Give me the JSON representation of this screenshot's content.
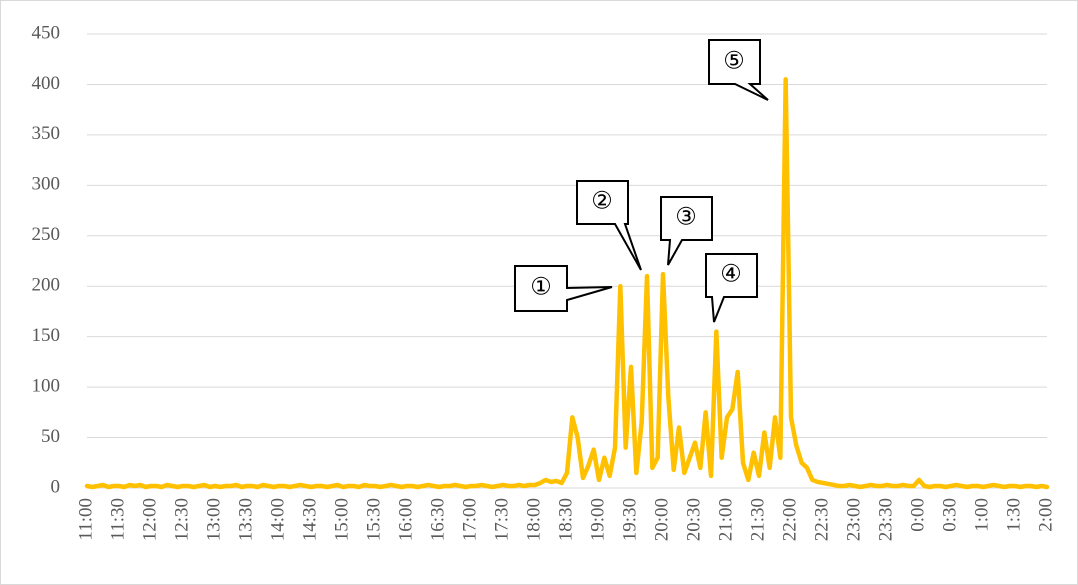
{
  "chart_data": {
    "type": "line",
    "categories": [
      "11:00",
      null,
      null,
      null,
      null,
      null,
      "11:30",
      null,
      null,
      null,
      null,
      null,
      "12:00",
      null,
      null,
      null,
      null,
      null,
      "12:30",
      null,
      null,
      null,
      null,
      null,
      "13:00",
      null,
      null,
      null,
      null,
      null,
      "13:30",
      null,
      null,
      null,
      null,
      null,
      "14:00",
      null,
      null,
      null,
      null,
      null,
      "14:30",
      null,
      null,
      null,
      null,
      null,
      "15:00",
      null,
      null,
      null,
      null,
      null,
      "15:30",
      null,
      null,
      null,
      null,
      null,
      "16:00",
      null,
      null,
      null,
      null,
      null,
      "16:30",
      null,
      null,
      null,
      null,
      null,
      "17:00",
      null,
      null,
      null,
      null,
      null,
      "17:30",
      null,
      null,
      null,
      null,
      null,
      "18:00",
      null,
      null,
      null,
      null,
      null,
      "18:30",
      null,
      null,
      null,
      null,
      null,
      "19:00",
      null,
      null,
      null,
      null,
      null,
      "19:30",
      null,
      null,
      null,
      null,
      null,
      "20:00",
      null,
      null,
      null,
      null,
      null,
      "20:30",
      null,
      null,
      null,
      null,
      null,
      "21:00",
      null,
      null,
      null,
      null,
      null,
      "21:30",
      null,
      null,
      null,
      null,
      null,
      "22:00",
      null,
      null,
      null,
      null,
      null,
      "22:30",
      null,
      null,
      null,
      null,
      null,
      "23:00",
      null,
      null,
      null,
      null,
      null,
      "23:30",
      null,
      null,
      null,
      null,
      null,
      "0:00",
      null,
      null,
      null,
      null,
      null,
      "0:30",
      null,
      null,
      null,
      null,
      null,
      "1:00",
      null,
      null,
      null,
      null,
      null,
      "1:30",
      null,
      null,
      null,
      null,
      null,
      "2:00"
    ],
    "series": [
      {
        "name": null,
        "color": "#ffc000",
        "values": [
          2,
          1,
          2,
          3,
          1,
          2,
          2,
          1,
          3,
          2,
          3,
          1,
          2,
          2,
          1,
          3,
          2,
          1,
          2,
          2,
          1,
          2,
          3,
          1,
          2,
          1,
          2,
          2,
          3,
          1,
          2,
          2,
          1,
          3,
          2,
          1,
          2,
          2,
          1,
          2,
          3,
          2,
          1,
          2,
          2,
          1,
          2,
          3,
          1,
          2,
          2,
          1,
          3,
          2,
          2,
          1,
          2,
          3,
          2,
          1,
          2,
          2,
          1,
          2,
          3,
          2,
          1,
          2,
          2,
          3,
          2,
          1,
          2,
          2,
          3,
          2,
          1,
          2,
          3,
          2,
          2,
          3,
          2,
          3,
          3,
          5,
          8,
          6,
          7,
          5,
          15,
          70,
          50,
          10,
          22,
          38,
          8,
          30,
          12,
          40,
          200,
          40,
          120,
          15,
          65,
          210,
          20,
          30,
          212,
          90,
          18,
          60,
          15,
          30,
          45,
          20,
          75,
          12,
          155,
          30,
          70,
          78,
          115,
          25,
          8,
          35,
          12,
          55,
          20,
          70,
          30,
          405,
          70,
          42,
          25,
          20,
          8,
          6,
          5,
          4,
          3,
          2,
          2,
          3,
          2,
          1,
          2,
          3,
          2,
          2,
          3,
          2,
          2,
          3,
          2,
          2,
          8,
          2,
          1,
          2,
          2,
          1,
          2,
          3,
          2,
          1,
          2,
          2,
          1,
          2,
          3,
          2,
          1,
          2,
          2,
          1,
          2,
          2,
          1,
          2,
          1
        ]
      }
    ],
    "ylim": [
      0,
      450
    ],
    "yticks": [
      0,
      50,
      100,
      150,
      200,
      250,
      300,
      350,
      400,
      450
    ],
    "grid": true,
    "annotations": [
      {
        "text": "①"
      },
      {
        "text": "②"
      },
      {
        "text": "③"
      },
      {
        "text": "④"
      },
      {
        "text": "⑤"
      }
    ]
  }
}
